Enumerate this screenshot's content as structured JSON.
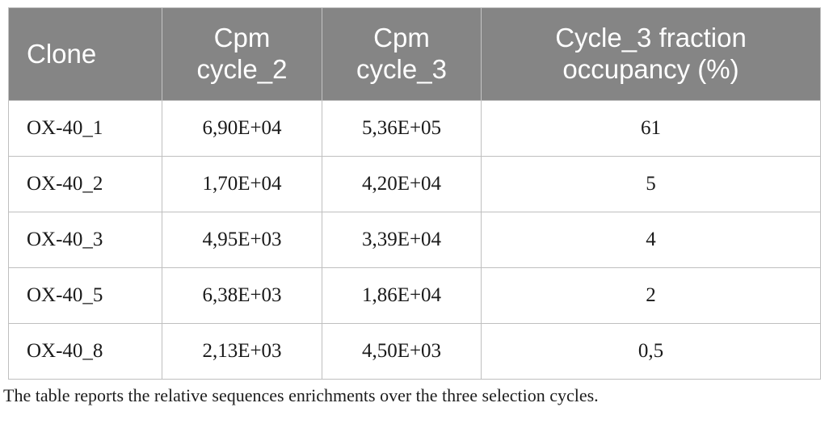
{
  "table": {
    "columns": [
      {
        "id": "clone",
        "label": "Clone"
      },
      {
        "id": "cpm_cycle_2",
        "label": "Cpm\ncycle_2"
      },
      {
        "id": "cpm_cycle_3",
        "label": "Cpm\ncycle_3"
      },
      {
        "id": "cycle_3_fraction_occupancy",
        "label": "Cycle_3 fraction\noccupancy (%)"
      }
    ],
    "rows": [
      {
        "cells": [
          "OX-40_1",
          "6,90E+04",
          "5,36E+05",
          "61"
        ]
      },
      {
        "cells": [
          "OX-40_2",
          "1,70E+04",
          "4,20E+04",
          "5"
        ]
      },
      {
        "cells": [
          "OX-40_3",
          "4,95E+03",
          "3,39E+04",
          "4"
        ]
      },
      {
        "cells": [
          "OX-40_5",
          "6,38E+03",
          "1,86E+04",
          "2"
        ]
      },
      {
        "cells": [
          "OX-40_8",
          "2,13E+03",
          "4,50E+03",
          "0,5"
        ]
      }
    ]
  },
  "footnote": "The table reports the relative sequences enrichments over the three selection cycles.",
  "colors": {
    "header_bg": "#858585",
    "header_text": "#ffffff",
    "grid_line": "#bfbfbf",
    "body_text": "#1a1a1a"
  }
}
